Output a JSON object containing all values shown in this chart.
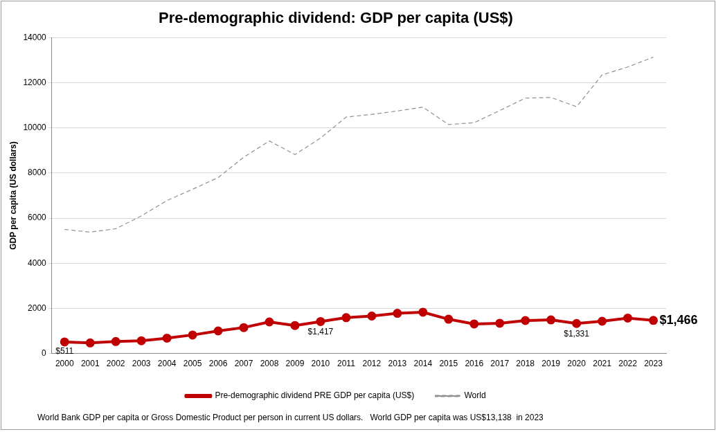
{
  "chart_data": {
    "type": "line",
    "title": "Pre-demographic dividend: GDP per capita (US$)",
    "ylabel": "GDP per capita (US dollars)",
    "categories": [
      "2000",
      "2001",
      "2002",
      "2003",
      "2004",
      "2005",
      "2006",
      "2007",
      "2008",
      "2009",
      "2010",
      "2011",
      "2012",
      "2013",
      "2014",
      "2015",
      "2016",
      "2017",
      "2018",
      "2019",
      "2020",
      "2021",
      "2022",
      "2023"
    ],
    "series": [
      {
        "name": "Pre-demographic dividend PRE GDP per capita (US$)",
        "color": "#c00000",
        "marker": "circle",
        "line_style": "solid",
        "values": [
          511,
          470,
          530,
          565,
          680,
          820,
          1000,
          1150,
          1400,
          1240,
          1417,
          1590,
          1660,
          1780,
          1830,
          1520,
          1310,
          1340,
          1460,
          1490,
          1331,
          1430,
          1570,
          1466
        ],
        "value_labels": [
          "$511",
          null,
          null,
          null,
          null,
          null,
          null,
          null,
          null,
          null,
          "$1,417",
          null,
          null,
          null,
          null,
          null,
          null,
          null,
          null,
          null,
          "$1,331",
          null,
          null,
          "$1,466"
        ]
      },
      {
        "name": "World",
        "color": "#909090",
        "marker": "none",
        "line_style": "dashed",
        "values": [
          5500,
          5380,
          5530,
          6100,
          6780,
          7280,
          7800,
          8700,
          9420,
          8820,
          9550,
          10480,
          10600,
          10750,
          10920,
          10150,
          10230,
          10770,
          11320,
          11350,
          10940,
          12350,
          12700,
          13138
        ]
      }
    ],
    "ylim": [
      0,
      14000
    ],
    "yticks": [
      0,
      2000,
      4000,
      6000,
      8000,
      10000,
      12000,
      14000
    ],
    "grid": "y",
    "legend": "bottom",
    "annotations": [
      "World Bank GDP per capita or Gross Domestic Product per person in current US dollars.   World GDP per capita was US$13,138  in 2023"
    ]
  }
}
